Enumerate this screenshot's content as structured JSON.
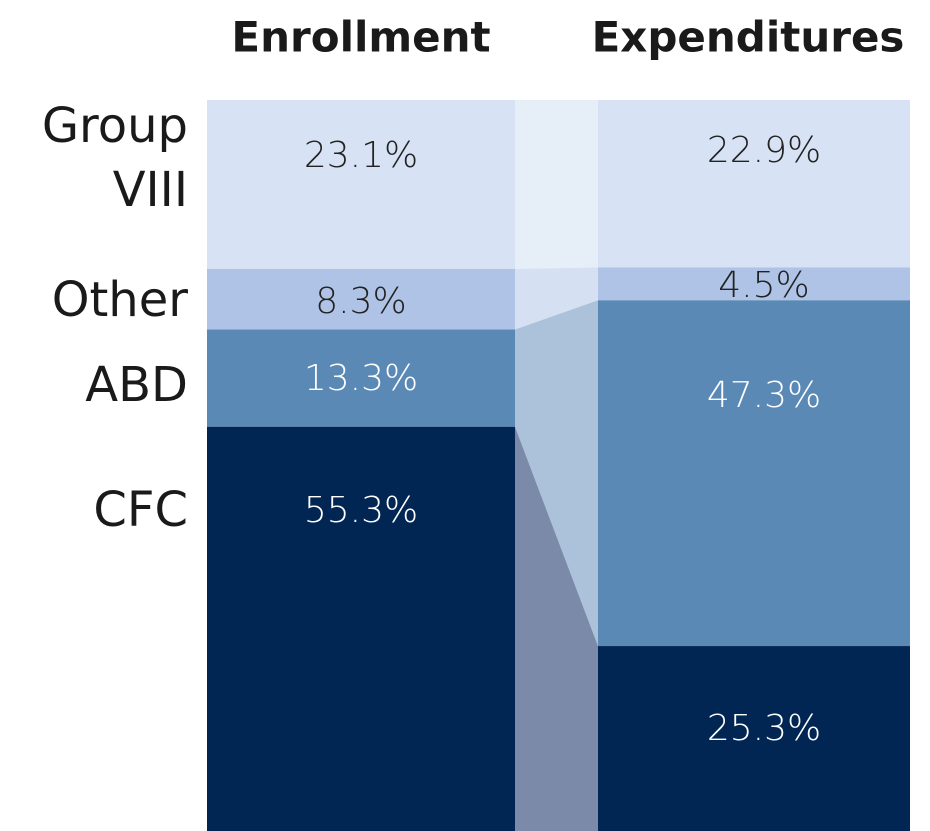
{
  "chart_data": {
    "type": "stacked_bar_100",
    "categories": [
      "Enrollment",
      "Expenditures"
    ],
    "series": [
      {
        "name": "Group VIII",
        "color": "#d7e2f4",
        "values": [
          23.1,
          22.9
        ],
        "value_labels": [
          "23.1%",
          "22.9%"
        ]
      },
      {
        "name": "Other",
        "color": "#aec3e5",
        "values": [
          8.3,
          4.5
        ],
        "value_labels": [
          "8.3%",
          "4.5%"
        ]
      },
      {
        "name": "ABD",
        "color": "#5a89b6",
        "values": [
          13.3,
          47.3
        ],
        "value_labels": [
          "13.3%",
          "47.3%"
        ]
      },
      {
        "name": "CFC",
        "color": "#022654",
        "values": [
          55.3,
          25.3
        ],
        "value_labels": [
          "55.3%",
          "25.3%"
        ]
      }
    ]
  }
}
